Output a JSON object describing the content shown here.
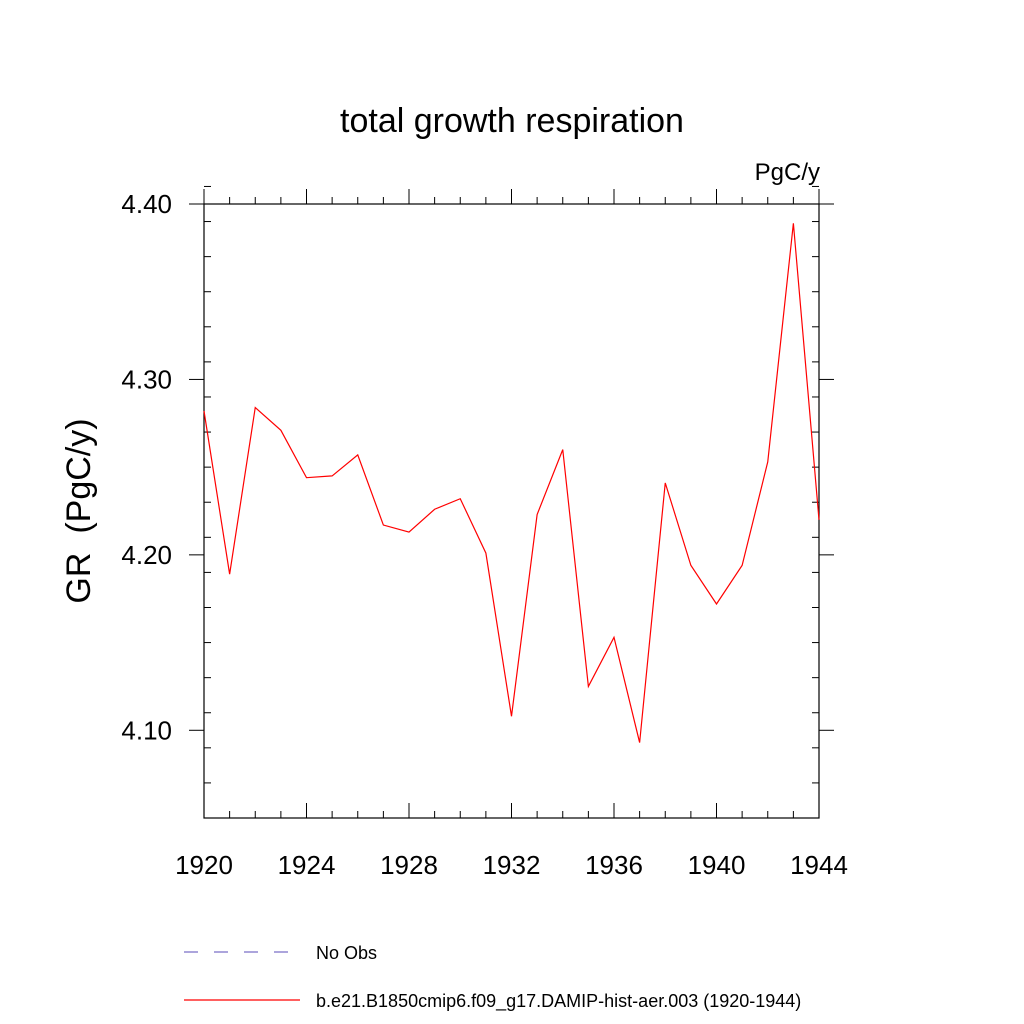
{
  "chart_data": {
    "type": "line",
    "title": "total growth respiration",
    "units_label": "PgC/y",
    "ylabel": "GR  (PgC/y)",
    "xlabel": "",
    "xlim": [
      1920,
      1944
    ],
    "ylim": [
      4.05,
      4.4
    ],
    "x_ticks": [
      1920,
      1924,
      1928,
      1932,
      1936,
      1940,
      1944
    ],
    "x_tick_labels": [
      "1920",
      "1924",
      "1928",
      "1932",
      "1936",
      "1940",
      "1944"
    ],
    "x_minor_step": 1,
    "y_ticks": [
      4.1,
      4.2,
      4.3,
      4.4
    ],
    "y_tick_labels": [
      "4.10",
      "4.20",
      "4.30",
      "4.40"
    ],
    "y_minor_step": 0.02,
    "grid": false,
    "legend_position": "bottom-left",
    "series": [
      {
        "name": "b.e21.B1850cmip6.f09_g17.DAMIP-hist-aer.003 (1920-1944)",
        "color": "#ff0000",
        "style": "solid",
        "x": [
          1920,
          1921,
          1922,
          1923,
          1924,
          1925,
          1926,
          1927,
          1928,
          1929,
          1930,
          1931,
          1932,
          1933,
          1934,
          1935,
          1936,
          1937,
          1938,
          1939,
          1940,
          1941,
          1942,
          1943,
          1944
        ],
        "values": [
          4.282,
          4.189,
          4.284,
          4.271,
          4.244,
          4.245,
          4.257,
          4.217,
          4.213,
          4.226,
          4.232,
          4.201,
          4.108,
          4.223,
          4.26,
          4.125,
          4.153,
          4.093,
          4.241,
          4.194,
          4.172,
          4.194,
          4.253,
          4.389,
          4.22
        ]
      }
    ],
    "legend": [
      {
        "label": "No Obs",
        "color": "#7a6fc8",
        "style": "dashed"
      },
      {
        "label": "b.e21.B1850cmip6.f09_g17.DAMIP-hist-aer.003 (1920-1944)",
        "color": "#ff0000",
        "style": "solid"
      }
    ]
  }
}
